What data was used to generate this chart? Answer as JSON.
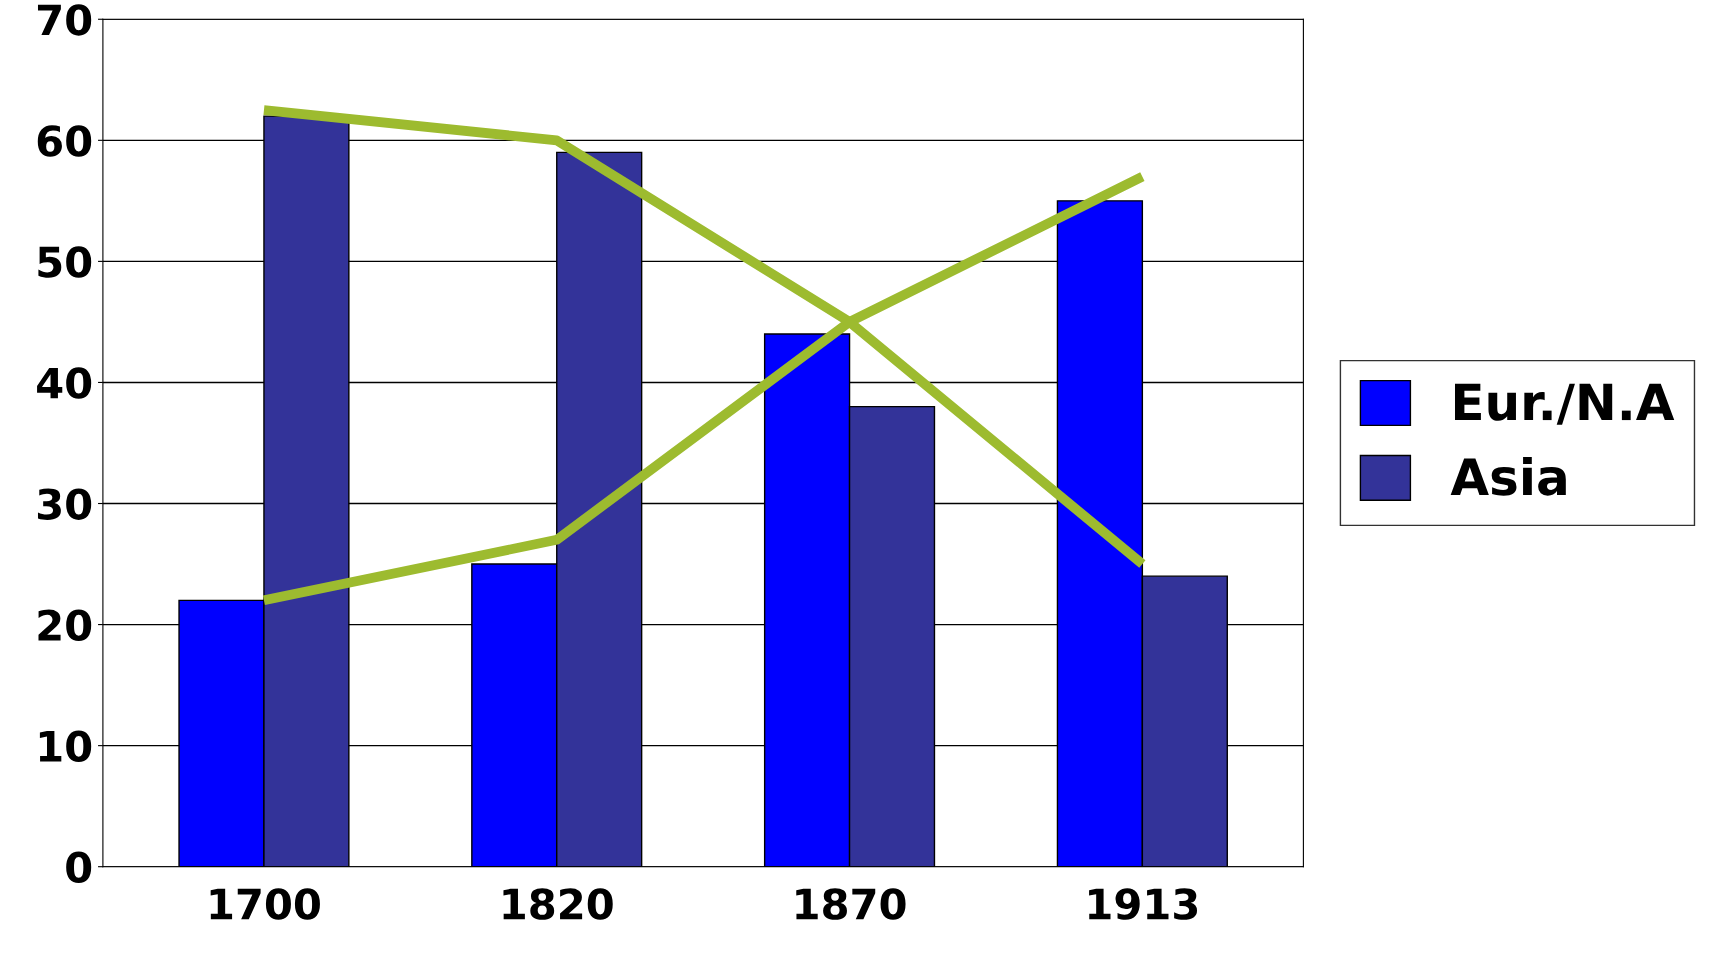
{
  "chart_data": {
    "type": "bar",
    "categories": [
      "1700",
      "1820",
      "1870",
      "1913"
    ],
    "series": [
      {
        "name": "Eur./N.A",
        "color": "#0000ff",
        "values": [
          22,
          25,
          44,
          55
        ]
      },
      {
        "name": "Asia",
        "color": "#333399",
        "values": [
          62,
          59,
          38,
          24
        ]
      },
      {
        "type": "line",
        "color": "#9dbb2f",
        "values": [
          22,
          27,
          45,
          57
        ]
      },
      {
        "type": "line",
        "color": "#9dbb2f",
        "values": [
          62.5,
          60,
          45,
          25
        ]
      }
    ],
    "ylim": [
      0,
      70
    ],
    "yticks": [
      0,
      10,
      20,
      30,
      40,
      50,
      60,
      70
    ],
    "grid": "y",
    "legend": "right",
    "marker": "none",
    "line_style": "solid"
  }
}
